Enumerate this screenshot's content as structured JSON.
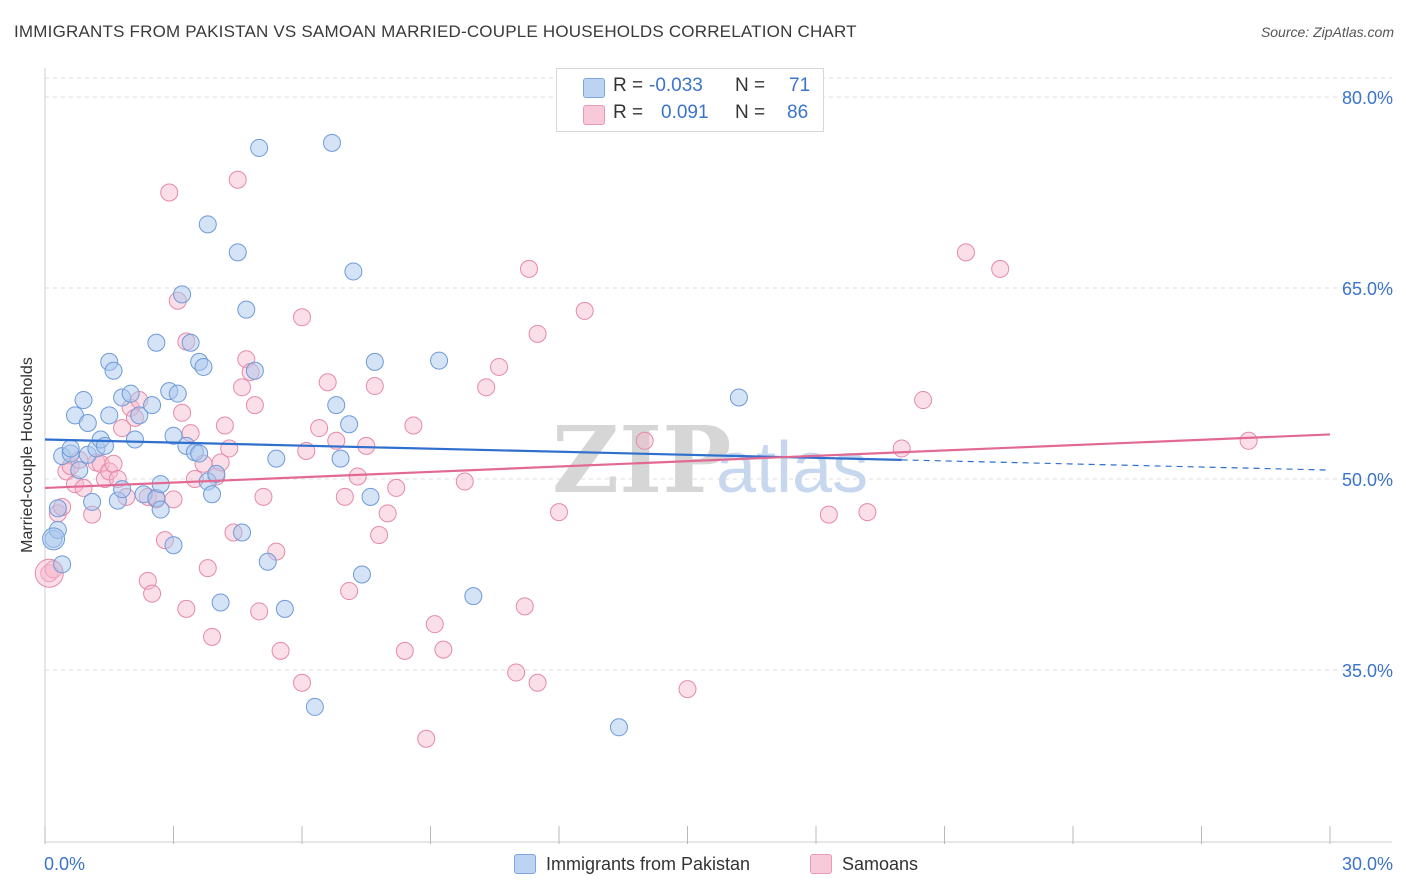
{
  "title": "IMMIGRANTS FROM PAKISTAN VS SAMOAN MARRIED-COUPLE HOUSEHOLDS CORRELATION CHART",
  "source": "Source: ZipAtlas.com",
  "legend": {
    "rows": [
      {
        "r_label": "R =",
        "r_value": "-0.033",
        "n_label": "N =",
        "n_value": "71"
      },
      {
        "r_label": "R =",
        "r_value": "0.091",
        "n_label": "N =",
        "n_value": "86"
      }
    ]
  },
  "bottom_legend": {
    "series1": "Immigrants from Pakistan",
    "series2": "Samoans"
  },
  "watermark": {
    "zip": "ZIP",
    "atlas": "atlas"
  },
  "colors": {
    "blue_fill": "#a9c8ee",
    "blue_stroke": "#6f9ad8",
    "blue_line": "#2f6fce",
    "pink_fill": "#f6b8cc",
    "pink_stroke": "#e58aa8",
    "pink_line": "#e26a92",
    "tick_label": "#3b74c8",
    "grid": "#dddddd"
  },
  "chart_data": {
    "type": "scatter",
    "title": "IMMIGRANTS FROM PAKISTAN VS SAMOAN MARRIED-COUPLE HOUSEHOLDS CORRELATION CHART",
    "xlabel": "",
    "ylabel": "Married-couple Households",
    "xlim": [
      0,
      30
    ],
    "ylim": [
      20,
      82
    ],
    "x_tick_labels": [
      "0.0%",
      "30.0%"
    ],
    "y_ticks": [
      35,
      50,
      65,
      80
    ],
    "y_tick_labels": [
      "35.0%",
      "50.0%",
      "65.0%",
      "80.0%"
    ],
    "grid": true,
    "legend_position": "top-center",
    "series": [
      {
        "name": "Immigrants from Pakistan",
        "color": "#a9c8ee",
        "trend": {
          "x": [
            0,
            20
          ],
          "y": [
            53.1,
            51.5
          ],
          "dashed_to": [
            30,
            50.7
          ]
        },
        "points": [
          [
            0.2,
            45.3
          ],
          [
            0.3,
            46.0
          ],
          [
            0.3,
            47.7
          ],
          [
            0.4,
            43.3
          ],
          [
            0.4,
            51.8
          ],
          [
            0.6,
            52.0
          ],
          [
            0.6,
            52.4
          ],
          [
            0.7,
            55.0
          ],
          [
            0.8,
            50.7
          ],
          [
            0.9,
            56.2
          ],
          [
            1.0,
            51.9
          ],
          [
            1.0,
            54.4
          ],
          [
            1.1,
            48.2
          ],
          [
            1.2,
            52.4
          ],
          [
            1.3,
            53.1
          ],
          [
            1.4,
            52.6
          ],
          [
            1.5,
            59.2
          ],
          [
            1.5,
            55.0
          ],
          [
            1.6,
            58.5
          ],
          [
            1.7,
            48.3
          ],
          [
            1.8,
            49.2
          ],
          [
            1.8,
            56.4
          ],
          [
            2.0,
            56.7
          ],
          [
            2.1,
            53.1
          ],
          [
            2.2,
            55.0
          ],
          [
            2.3,
            48.8
          ],
          [
            2.5,
            55.8
          ],
          [
            2.6,
            48.5
          ],
          [
            2.6,
            60.7
          ],
          [
            2.7,
            47.6
          ],
          [
            2.7,
            49.6
          ],
          [
            2.9,
            56.9
          ],
          [
            3.0,
            53.4
          ],
          [
            3.0,
            44.8
          ],
          [
            3.1,
            56.7
          ],
          [
            3.2,
            64.5
          ],
          [
            3.3,
            52.6
          ],
          [
            3.4,
            60.7
          ],
          [
            3.5,
            52.1
          ],
          [
            3.6,
            52.0
          ],
          [
            3.6,
            59.2
          ],
          [
            3.7,
            58.8
          ],
          [
            3.8,
            49.8
          ],
          [
            3.8,
            70.0
          ],
          [
            3.9,
            48.8
          ],
          [
            4.0,
            50.4
          ],
          [
            4.1,
            40.3
          ],
          [
            4.5,
            67.8
          ],
          [
            4.6,
            45.8
          ],
          [
            4.7,
            63.3
          ],
          [
            4.9,
            58.5
          ],
          [
            5.0,
            76.0
          ],
          [
            5.2,
            43.5
          ],
          [
            5.4,
            51.6
          ],
          [
            5.6,
            39.8
          ],
          [
            6.3,
            32.1
          ],
          [
            6.7,
            76.4
          ],
          [
            6.8,
            55.8
          ],
          [
            6.9,
            51.6
          ],
          [
            7.1,
            54.3
          ],
          [
            7.2,
            66.3
          ],
          [
            7.4,
            42.5
          ],
          [
            7.6,
            48.6
          ],
          [
            7.7,
            59.2
          ],
          [
            9.2,
            59.3
          ],
          [
            10.0,
            40.8
          ],
          [
            13.4,
            30.5
          ],
          [
            16.2,
            56.4
          ]
        ]
      },
      {
        "name": "Samoans",
        "color": "#f6b8cc",
        "trend": {
          "x": [
            0,
            30
          ],
          "y": [
            49.3,
            53.5
          ]
        },
        "points": [
          [
            0.1,
            42.6
          ],
          [
            0.2,
            42.9
          ],
          [
            0.3,
            47.3
          ],
          [
            0.4,
            47.8
          ],
          [
            0.5,
            50.6
          ],
          [
            0.6,
            51.0
          ],
          [
            0.7,
            49.6
          ],
          [
            0.8,
            51.5
          ],
          [
            0.9,
            49.3
          ],
          [
            1.1,
            47.2
          ],
          [
            1.2,
            51.3
          ],
          [
            1.3,
            51.2
          ],
          [
            1.4,
            50.0
          ],
          [
            1.5,
            50.6
          ],
          [
            1.6,
            51.2
          ],
          [
            1.7,
            50.0
          ],
          [
            1.8,
            54.0
          ],
          [
            1.9,
            48.6
          ],
          [
            2.0,
            55.6
          ],
          [
            2.1,
            54.8
          ],
          [
            2.2,
            56.2
          ],
          [
            2.4,
            48.6
          ],
          [
            2.4,
            42.0
          ],
          [
            2.5,
            41.0
          ],
          [
            2.6,
            48.4
          ],
          [
            2.8,
            45.2
          ],
          [
            2.9,
            72.5
          ],
          [
            3.0,
            48.4
          ],
          [
            3.1,
            64.0
          ],
          [
            3.2,
            55.2
          ],
          [
            3.3,
            60.8
          ],
          [
            3.3,
            39.8
          ],
          [
            3.4,
            53.6
          ],
          [
            3.5,
            50.0
          ],
          [
            3.7,
            51.2
          ],
          [
            3.8,
            43.0
          ],
          [
            3.9,
            37.6
          ],
          [
            4.0,
            50.2
          ],
          [
            4.1,
            51.3
          ],
          [
            4.2,
            54.2
          ],
          [
            4.3,
            52.4
          ],
          [
            4.4,
            45.8
          ],
          [
            4.5,
            73.5
          ],
          [
            4.6,
            57.2
          ],
          [
            4.7,
            59.4
          ],
          [
            4.8,
            58.4
          ],
          [
            4.9,
            55.8
          ],
          [
            5.0,
            39.6
          ],
          [
            5.1,
            48.6
          ],
          [
            5.4,
            44.3
          ],
          [
            5.5,
            36.5
          ],
          [
            6.0,
            34.0
          ],
          [
            6.0,
            62.7
          ],
          [
            6.1,
            52.2
          ],
          [
            6.4,
            54.0
          ],
          [
            6.6,
            57.6
          ],
          [
            6.8,
            53.0
          ],
          [
            7.0,
            48.6
          ],
          [
            7.1,
            41.2
          ],
          [
            7.3,
            50.2
          ],
          [
            7.5,
            52.6
          ],
          [
            7.7,
            57.3
          ],
          [
            7.8,
            45.6
          ],
          [
            8.0,
            47.3
          ],
          [
            8.2,
            49.3
          ],
          [
            8.4,
            36.5
          ],
          [
            8.6,
            54.2
          ],
          [
            8.9,
            29.6
          ],
          [
            9.1,
            38.6
          ],
          [
            9.3,
            36.6
          ],
          [
            9.8,
            49.8
          ],
          [
            10.3,
            57.2
          ],
          [
            10.6,
            58.8
          ],
          [
            11.0,
            34.8
          ],
          [
            11.2,
            40.0
          ],
          [
            11.3,
            66.5
          ],
          [
            11.5,
            34.0
          ],
          [
            11.5,
            61.4
          ],
          [
            12.0,
            47.4
          ],
          [
            12.6,
            63.2
          ],
          [
            14.0,
            53.0
          ],
          [
            15.0,
            33.5
          ],
          [
            18.3,
            47.2
          ],
          [
            19.2,
            47.4
          ],
          [
            20.0,
            52.4
          ],
          [
            20.5,
            56.2
          ],
          [
            21.5,
            67.8
          ],
          [
            22.3,
            66.5
          ],
          [
            28.1,
            53.0
          ]
        ]
      }
    ]
  }
}
